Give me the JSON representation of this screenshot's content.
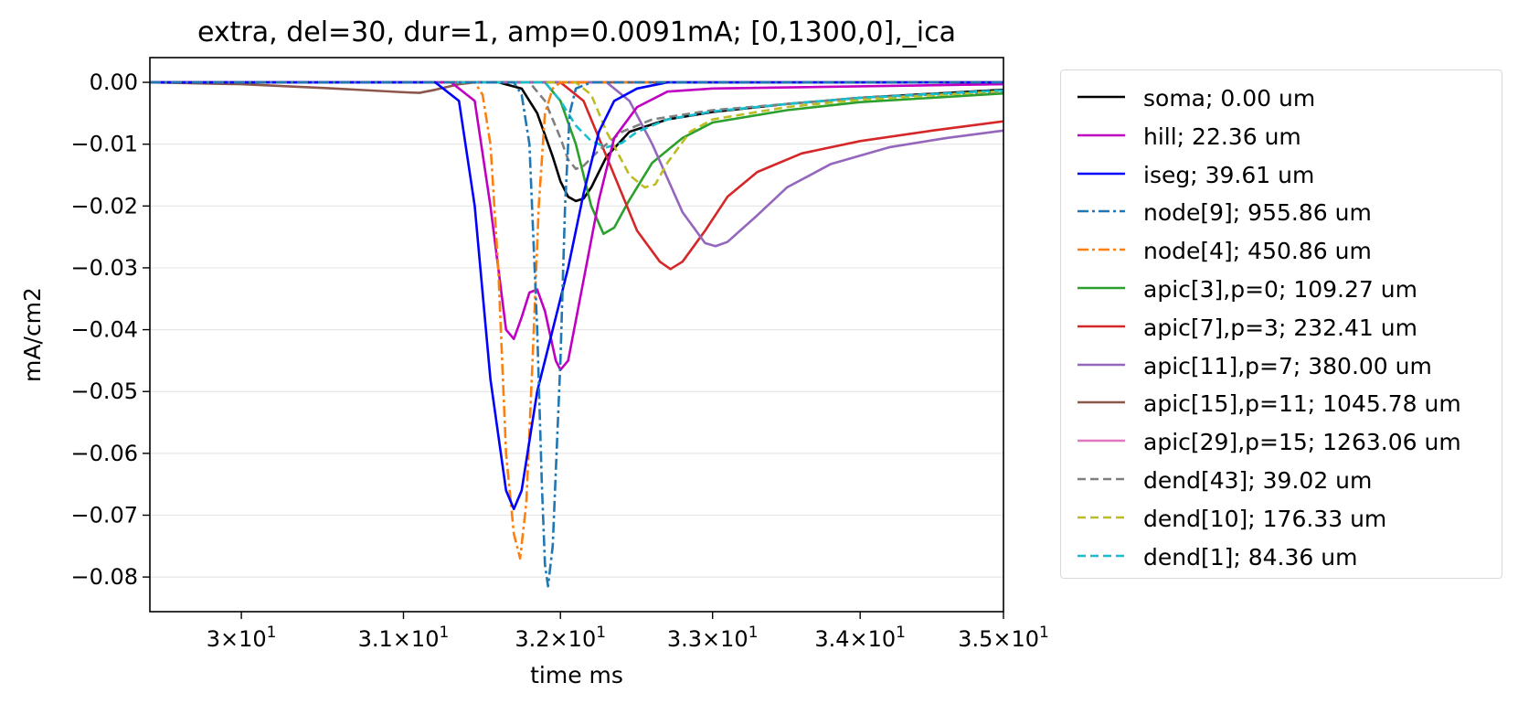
{
  "chart_data": {
    "type": "line",
    "title": "extra, del=30, dur=1, amp=0.0091mA; [0,1300,0],_ica",
    "xlabel": "time ms",
    "ylabel": "mA/cm2",
    "xscale": "log",
    "xlim": [
      29.45,
      35.0
    ],
    "ylim": [
      -0.0856,
      0.004
    ],
    "grid": "horizontal",
    "legend_position": "outside right",
    "x_ticks": [
      {
        "value": 30,
        "mant": "3",
        "exp": "1"
      },
      {
        "value": 31,
        "mant": "3.1",
        "exp": "1"
      },
      {
        "value": 32,
        "mant": "3.2",
        "exp": "1"
      },
      {
        "value": 33,
        "mant": "3.3",
        "exp": "1"
      },
      {
        "value": 34,
        "mant": "3.4",
        "exp": "1"
      },
      {
        "value": 35,
        "mant": "3.5",
        "exp": "1"
      }
    ],
    "y_ticks": [
      {
        "value": 0.0,
        "label": "0.00"
      },
      {
        "value": -0.01,
        "label": "−0.01"
      },
      {
        "value": -0.02,
        "label": "−0.02"
      },
      {
        "value": -0.03,
        "label": "−0.03"
      },
      {
        "value": -0.04,
        "label": "−0.04"
      },
      {
        "value": -0.05,
        "label": "−0.05"
      },
      {
        "value": -0.06,
        "label": "−0.06"
      },
      {
        "value": -0.07,
        "label": "−0.07"
      },
      {
        "value": -0.08,
        "label": "−0.08"
      }
    ],
    "series": [
      {
        "name": "soma; 0.00 um",
        "color": "#000000",
        "dash": "solid",
        "points": [
          [
            29.45,
            0
          ],
          [
            31.6,
            0
          ],
          [
            31.75,
            -0.001
          ],
          [
            31.85,
            -0.005
          ],
          [
            31.95,
            -0.012
          ],
          [
            32.0,
            -0.016
          ],
          [
            32.05,
            -0.0185
          ],
          [
            32.1,
            -0.0192
          ],
          [
            32.15,
            -0.0188
          ],
          [
            32.2,
            -0.017
          ],
          [
            32.3,
            -0.012
          ],
          [
            32.45,
            -0.008
          ],
          [
            32.7,
            -0.006
          ],
          [
            33.0,
            -0.0048
          ],
          [
            33.5,
            -0.0035
          ],
          [
            34.0,
            -0.0025
          ],
          [
            35.0,
            -0.0012
          ]
        ]
      },
      {
        "name": "hill; 22.36 um",
        "color": "#c000c0",
        "dash": "solid",
        "points": [
          [
            29.45,
            0
          ],
          [
            31.3,
            0
          ],
          [
            31.45,
            -0.003
          ],
          [
            31.55,
            -0.02
          ],
          [
            31.65,
            -0.04
          ],
          [
            31.7,
            -0.0415
          ],
          [
            31.75,
            -0.038
          ],
          [
            31.8,
            -0.034
          ],
          [
            31.85,
            -0.0335
          ],
          [
            31.9,
            -0.037
          ],
          [
            31.97,
            -0.045
          ],
          [
            32.0,
            -0.0465
          ],
          [
            32.05,
            -0.045
          ],
          [
            32.15,
            -0.032
          ],
          [
            32.25,
            -0.019
          ],
          [
            32.35,
            -0.009
          ],
          [
            32.5,
            -0.004
          ],
          [
            32.7,
            -0.0015
          ],
          [
            33.0,
            -0.001
          ],
          [
            35.0,
            -0.0003
          ]
        ]
      },
      {
        "name": "iseg; 39.61 um",
        "color": "#0000ff",
        "dash": "solid",
        "points": [
          [
            29.45,
            0
          ],
          [
            31.2,
            0
          ],
          [
            31.35,
            -0.003
          ],
          [
            31.45,
            -0.02
          ],
          [
            31.55,
            -0.048
          ],
          [
            31.65,
            -0.066
          ],
          [
            31.7,
            -0.069
          ],
          [
            31.75,
            -0.066
          ],
          [
            31.85,
            -0.05
          ],
          [
            31.95,
            -0.04
          ],
          [
            32.05,
            -0.03
          ],
          [
            32.15,
            -0.018
          ],
          [
            32.25,
            -0.008
          ],
          [
            32.35,
            -0.003
          ],
          [
            32.5,
            -0.001
          ],
          [
            32.7,
            0
          ],
          [
            35.0,
            0
          ]
        ]
      },
      {
        "name": "node[9]; 955.86 um",
        "color": "#1f77b4",
        "dash": "dashdot",
        "points": [
          [
            29.45,
            0
          ],
          [
            31.7,
            0
          ],
          [
            31.75,
            -0.002
          ],
          [
            31.8,
            -0.01
          ],
          [
            31.85,
            -0.04
          ],
          [
            31.88,
            -0.065
          ],
          [
            31.9,
            -0.078
          ],
          [
            31.92,
            -0.0815
          ],
          [
            31.95,
            -0.075
          ],
          [
            32.0,
            -0.045
          ],
          [
            32.03,
            -0.02
          ],
          [
            32.06,
            -0.005
          ],
          [
            32.1,
            -0.001
          ],
          [
            32.2,
            0
          ],
          [
            35.0,
            0
          ]
        ]
      },
      {
        "name": "node[4]; 450.86 um",
        "color": "#ff7f0e",
        "dash": "dashdot",
        "points": [
          [
            29.45,
            0
          ],
          [
            31.45,
            0
          ],
          [
            31.5,
            -0.002
          ],
          [
            31.55,
            -0.01
          ],
          [
            31.6,
            -0.03
          ],
          [
            31.65,
            -0.06
          ],
          [
            31.7,
            -0.073
          ],
          [
            31.74,
            -0.077
          ],
          [
            31.78,
            -0.068
          ],
          [
            31.82,
            -0.045
          ],
          [
            31.86,
            -0.02
          ],
          [
            31.9,
            -0.005
          ],
          [
            31.95,
            -0.001
          ],
          [
            32.0,
            0
          ],
          [
            35.0,
            0
          ]
        ]
      },
      {
        "name": "apic[3],p=0; 109.27 um",
        "color": "#2ca02c",
        "dash": "solid",
        "points": [
          [
            29.45,
            0
          ],
          [
            31.9,
            0
          ],
          [
            32.0,
            -0.003
          ],
          [
            32.1,
            -0.01
          ],
          [
            32.2,
            -0.02
          ],
          [
            32.28,
            -0.0245
          ],
          [
            32.35,
            -0.0235
          ],
          [
            32.45,
            -0.019
          ],
          [
            32.6,
            -0.013
          ],
          [
            32.8,
            -0.009
          ],
          [
            33.0,
            -0.0065
          ],
          [
            33.5,
            -0.0045
          ],
          [
            34.0,
            -0.0032
          ],
          [
            35.0,
            -0.0018
          ]
        ]
      },
      {
        "name": "apic[7],p=3; 232.41 um",
        "color": "#d62728",
        "dash": "solid",
        "points": [
          [
            29.45,
            0
          ],
          [
            32.0,
            0
          ],
          [
            32.15,
            -0.003
          ],
          [
            32.3,
            -0.012
          ],
          [
            32.5,
            -0.024
          ],
          [
            32.65,
            -0.029
          ],
          [
            32.72,
            -0.0302
          ],
          [
            32.8,
            -0.029
          ],
          [
            32.95,
            -0.024
          ],
          [
            33.1,
            -0.0185
          ],
          [
            33.3,
            -0.0145
          ],
          [
            33.6,
            -0.0115
          ],
          [
            34.0,
            -0.0095
          ],
          [
            34.5,
            -0.0078
          ],
          [
            35.0,
            -0.0063
          ]
        ]
      },
      {
        "name": "apic[11],p=7; 380.00 um",
        "color": "#9467bd",
        "dash": "solid",
        "points": [
          [
            29.45,
            0
          ],
          [
            32.3,
            0
          ],
          [
            32.45,
            -0.003
          ],
          [
            32.6,
            -0.01
          ],
          [
            32.8,
            -0.021
          ],
          [
            32.95,
            -0.026
          ],
          [
            33.02,
            -0.0265
          ],
          [
            33.1,
            -0.0258
          ],
          [
            33.3,
            -0.0215
          ],
          [
            33.5,
            -0.017
          ],
          [
            33.8,
            -0.0132
          ],
          [
            34.2,
            -0.0105
          ],
          [
            34.6,
            -0.009
          ],
          [
            35.0,
            -0.0078
          ]
        ]
      },
      {
        "name": "apic[15],p=11; 1045.78 um",
        "color": "#8c564b",
        "dash": "solid",
        "points": [
          [
            29.45,
            0
          ],
          [
            30.0,
            -0.0003
          ],
          [
            30.5,
            -0.0009
          ],
          [
            31.0,
            -0.0016
          ],
          [
            31.1,
            -0.0017
          ],
          [
            31.2,
            -0.0012
          ],
          [
            31.35,
            -0.0003
          ],
          [
            31.45,
            0
          ],
          [
            35.0,
            0
          ]
        ]
      },
      {
        "name": "apic[29],p=15; 1263.06 um",
        "color": "#e377c2",
        "dash": "solid",
        "points": [
          [
            29.45,
            0
          ],
          [
            35.0,
            0
          ]
        ]
      },
      {
        "name": "dend[43]; 39.02 um",
        "color": "#7f7f7f",
        "dash": "dashed",
        "points": [
          [
            29.45,
            0
          ],
          [
            31.8,
            0
          ],
          [
            31.9,
            -0.003
          ],
          [
            32.0,
            -0.009
          ],
          [
            32.05,
            -0.0125
          ],
          [
            32.1,
            -0.014
          ],
          [
            32.15,
            -0.0135
          ],
          [
            32.25,
            -0.011
          ],
          [
            32.4,
            -0.008
          ],
          [
            32.6,
            -0.006
          ],
          [
            33.0,
            -0.0045
          ],
          [
            33.5,
            -0.0035
          ],
          [
            34.0,
            -0.0025
          ],
          [
            35.0,
            -0.0015
          ]
        ]
      },
      {
        "name": "dend[10]; 176.33 um",
        "color": "#bcbd22",
        "dash": "dashed",
        "points": [
          [
            29.45,
            0
          ],
          [
            32.1,
            0
          ],
          [
            32.2,
            -0.002
          ],
          [
            32.3,
            -0.008
          ],
          [
            32.45,
            -0.015
          ],
          [
            32.55,
            -0.017
          ],
          [
            32.62,
            -0.0165
          ],
          [
            32.7,
            -0.013
          ],
          [
            32.85,
            -0.008
          ],
          [
            33.0,
            -0.006
          ],
          [
            33.5,
            -0.004
          ],
          [
            34.0,
            -0.0028
          ],
          [
            35.0,
            -0.0014
          ]
        ]
      },
      {
        "name": "dend[1]; 84.36 um",
        "color": "#17becf",
        "dash": "dashed",
        "points": [
          [
            29.45,
            0
          ],
          [
            31.9,
            0
          ],
          [
            32.0,
            -0.003
          ],
          [
            32.1,
            -0.007
          ],
          [
            32.2,
            -0.0095
          ],
          [
            32.3,
            -0.0105
          ],
          [
            32.4,
            -0.0098
          ],
          [
            32.5,
            -0.008
          ],
          [
            32.7,
            -0.006
          ],
          [
            33.0,
            -0.0047
          ],
          [
            33.5,
            -0.0035
          ],
          [
            34.0,
            -0.0025
          ],
          [
            35.0,
            -0.0013
          ]
        ]
      }
    ]
  }
}
